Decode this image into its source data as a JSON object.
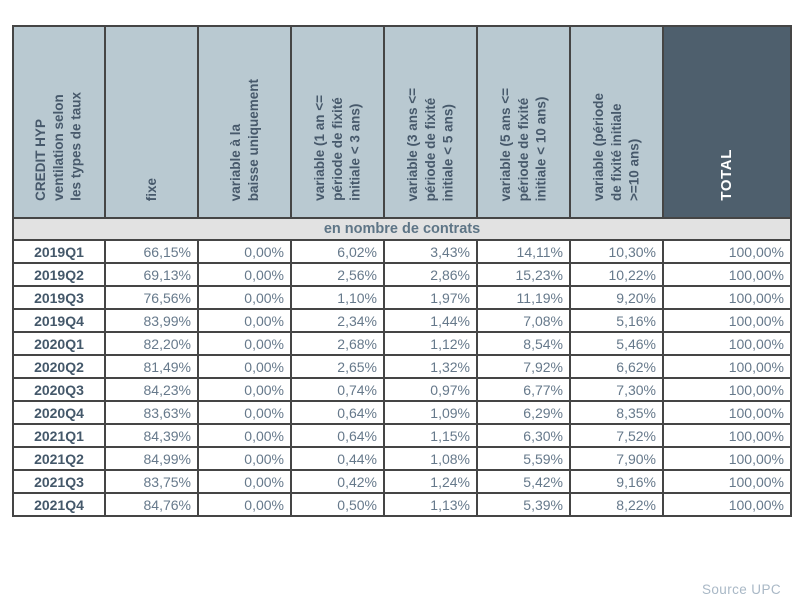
{
  "chart_data": {
    "type": "table",
    "title": "CREDIT HYP ventilation selon les types de taux",
    "section_label": "en nombre de contrats",
    "columns": [
      "CREDIT HYP\nventilation selon\nles types de taux",
      "fixe",
      "variable à la\nbaisse uniquement",
      "variable (1 an <=\npériode de fixité\ninitiale < 3 ans)",
      "variable (3 ans <=\npériode de fixité\ninitiale < 5 ans)",
      "variable (5 ans <=\npériode de fixité\ninitiale < 10 ans)",
      "variable (période\nde fixité initiale\n>=10 ans)",
      "TOTAL"
    ],
    "rows": [
      {
        "quarter": "2019Q1",
        "values": [
          "66,15%",
          "0,00%",
          "6,02%",
          "3,43%",
          "14,11%",
          "10,30%",
          "100,00%"
        ]
      },
      {
        "quarter": "2019Q2",
        "values": [
          "69,13%",
          "0,00%",
          "2,56%",
          "2,86%",
          "15,23%",
          "10,22%",
          "100,00%"
        ]
      },
      {
        "quarter": "2019Q3",
        "values": [
          "76,56%",
          "0,00%",
          "1,10%",
          "1,97%",
          "11,19%",
          "9,20%",
          "100,00%"
        ]
      },
      {
        "quarter": "2019Q4",
        "values": [
          "83,99%",
          "0,00%",
          "2,34%",
          "1,44%",
          "7,08%",
          "5,16%",
          "100,00%"
        ]
      },
      {
        "quarter": "2020Q1",
        "values": [
          "82,20%",
          "0,00%",
          "2,68%",
          "1,12%",
          "8,54%",
          "5,46%",
          "100,00%"
        ]
      },
      {
        "quarter": "2020Q2",
        "values": [
          "81,49%",
          "0,00%",
          "2,65%",
          "1,32%",
          "7,92%",
          "6,62%",
          "100,00%"
        ]
      },
      {
        "quarter": "2020Q3",
        "values": [
          "84,23%",
          "0,00%",
          "0,74%",
          "0,97%",
          "6,77%",
          "7,30%",
          "100,00%"
        ]
      },
      {
        "quarter": "2020Q4",
        "values": [
          "83,63%",
          "0,00%",
          "0,64%",
          "1,09%",
          "6,29%",
          "8,35%",
          "100,00%"
        ]
      },
      {
        "quarter": "2021Q1",
        "values": [
          "84,39%",
          "0,00%",
          "0,64%",
          "1,15%",
          "6,30%",
          "7,52%",
          "100,00%"
        ]
      },
      {
        "quarter": "2021Q2",
        "values": [
          "84,99%",
          "0,00%",
          "0,44%",
          "1,08%",
          "5,59%",
          "7,90%",
          "100,00%"
        ]
      },
      {
        "quarter": "2021Q3",
        "values": [
          "83,75%",
          "0,00%",
          "0,42%",
          "1,24%",
          "5,42%",
          "9,16%",
          "100,00%"
        ]
      },
      {
        "quarter": "2021Q4",
        "values": [
          "84,76%",
          "0,00%",
          "0,50%",
          "1,13%",
          "5,39%",
          "8,22%",
          "100,00%"
        ]
      }
    ],
    "layout": {
      "header_rotation": "vertical-bottom-to-top",
      "grid": true
    },
    "colors": {
      "header_bg": "#b9c9d1",
      "header_text": "#47596b",
      "total_bg": "#4e5f6d",
      "total_text": "#ffffff",
      "section_bg": "#e2e2e2",
      "data_text": "#66798b",
      "row_label_text": "#44586a",
      "border": "#454545",
      "source_text": "#a9b8c6"
    }
  },
  "footer": {
    "source": "Source UPC"
  }
}
